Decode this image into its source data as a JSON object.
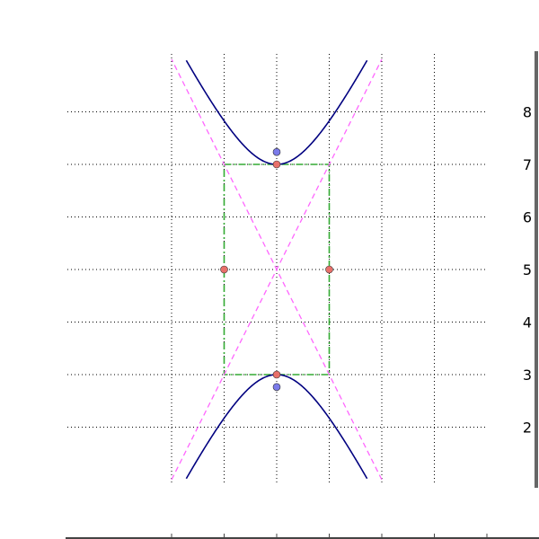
{
  "chart_data": {
    "type": "line",
    "title": "",
    "xlabel": "",
    "ylabel": "",
    "xlim": [
      -3,
      4
    ],
    "ylim": [
      1,
      9
    ],
    "grid": true,
    "y_ticks": [
      2,
      3,
      4,
      5,
      6,
      7,
      8
    ],
    "y_tick_labels": [
      "2",
      "3",
      "4",
      "5",
      "6",
      "7",
      "8"
    ],
    "x_ticks": [
      -2,
      -1,
      0,
      1,
      2,
      3
    ],
    "hyperbola": {
      "center": [
        0,
        5
      ],
      "a": 2,
      "b": 1,
      "orientation": "vertical",
      "color": "#000080"
    },
    "asymptotes": {
      "slopes": [
        2,
        -2
      ],
      "color": "#ff66ff",
      "style": "dashed"
    },
    "box": {
      "corners": [
        [
          -1,
          3
        ],
        [
          1,
          7
        ]
      ],
      "color": "#33aa33",
      "style": "dash-dot"
    },
    "vertex_points": {
      "color": "#e8706a",
      "points": [
        [
          0,
          7
        ],
        [
          0,
          3
        ],
        [
          -1,
          5
        ],
        [
          1,
          5
        ]
      ]
    },
    "focus_points": {
      "color": "#7b7bea",
      "points": [
        [
          0,
          7.236
        ],
        [
          0,
          2.764
        ]
      ]
    }
  }
}
